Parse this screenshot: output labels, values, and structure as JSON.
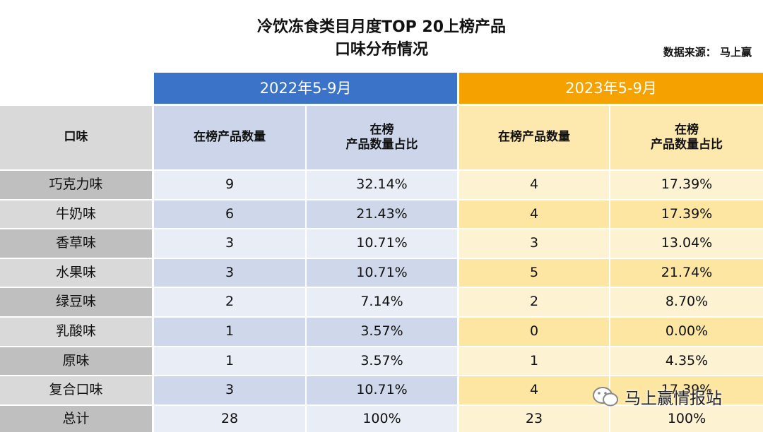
{
  "header": {
    "title": [
      "冷饮冻食类目月度TOP 20上榜产品",
      "口味分布情况"
    ],
    "source": "数据来源：  马上赢"
  },
  "table": {
    "group_headers": [
      "2022年5-9月",
      "2023年5-9月"
    ],
    "columns": [
      "口味",
      "在榜产品数量",
      "在榜\n产品数量占比",
      "在榜产品数量",
      "在榜\n产品数量占比"
    ],
    "rows": [
      [
        "巧克力味",
        "9",
        "32.14%",
        "4",
        "17.39%"
      ],
      [
        "牛奶味",
        "6",
        "21.43%",
        "4",
        "17.39%"
      ],
      [
        "香草味",
        "3",
        "10.71%",
        "3",
        "13.04%"
      ],
      [
        "水果味",
        "3",
        "10.71%",
        "5",
        "21.74%"
      ],
      [
        "绿豆味",
        "2",
        "7.14%",
        "2",
        "8.70%"
      ],
      [
        "乳酸味",
        "1",
        "3.57%",
        "0",
        "0.00%"
      ],
      [
        "原味",
        "1",
        "3.57%",
        "1",
        "4.35%"
      ],
      [
        "复合口味",
        "3",
        "10.71%",
        "4",
        "17.39%"
      ],
      [
        "总计",
        "28",
        "100%",
        "23",
        "100%"
      ]
    ]
  },
  "watermark": "马上赢情报站"
}
